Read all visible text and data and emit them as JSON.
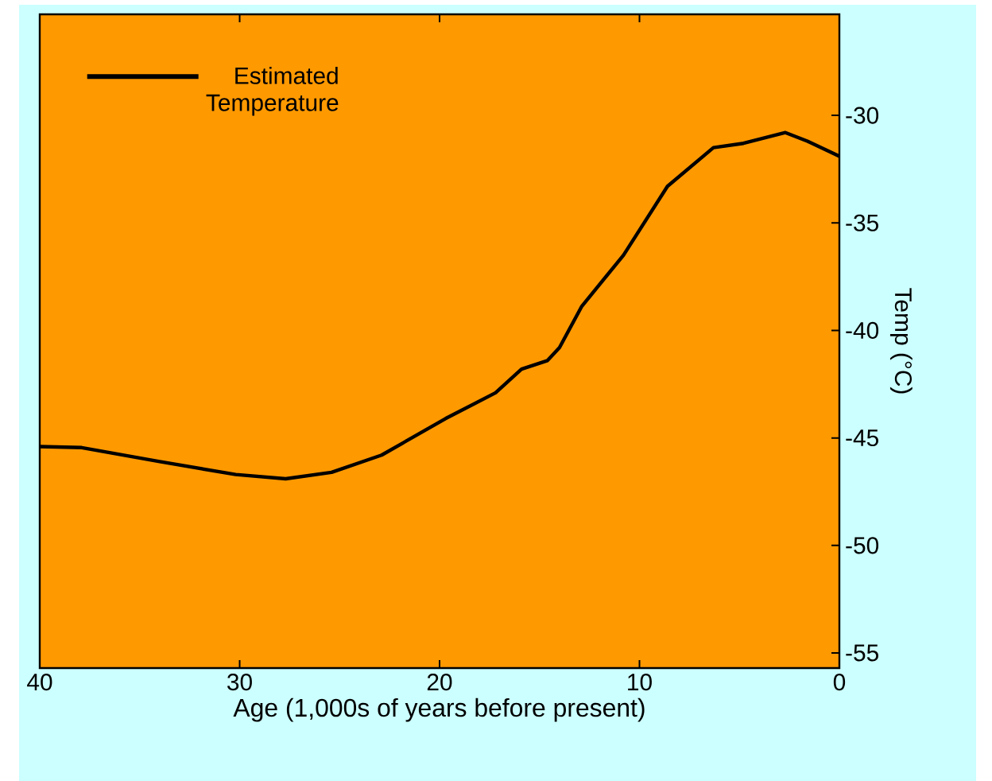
{
  "chart_data": {
    "type": "line",
    "xlabel": "Age (1,000s of years before present)",
    "ylabel": "Temp (°C)",
    "x": [
      40,
      37.9,
      34.0,
      30.2,
      27.7,
      25.4,
      22.9,
      19.7,
      17.2,
      15.9,
      14.6,
      14.0,
      12.9,
      10.8,
      8.6,
      6.3,
      4.8,
      2.7,
      1.6,
      0
    ],
    "series": [
      {
        "name": "Estimated Temperature",
        "color": "#000000",
        "values": [
          -45.4,
          -45.45,
          -46.1,
          -46.7,
          -46.9,
          -46.6,
          -45.8,
          -44.1,
          -42.9,
          -41.8,
          -41.4,
          -40.8,
          -38.9,
          -36.5,
          -33.3,
          -31.5,
          -31.3,
          -30.8,
          -31.2,
          -31.9
        ]
      }
    ],
    "xlim": [
      40,
      0
    ],
    "xticks": [
      40,
      30,
      20,
      10,
      0
    ],
    "ylim": [
      -55.7,
      -25.3
    ],
    "yticks": [
      -30,
      -35,
      -40,
      -45,
      -50,
      -55
    ],
    "legend": "top left",
    "grid": false,
    "marker": "none",
    "line_style": "solid"
  }
}
